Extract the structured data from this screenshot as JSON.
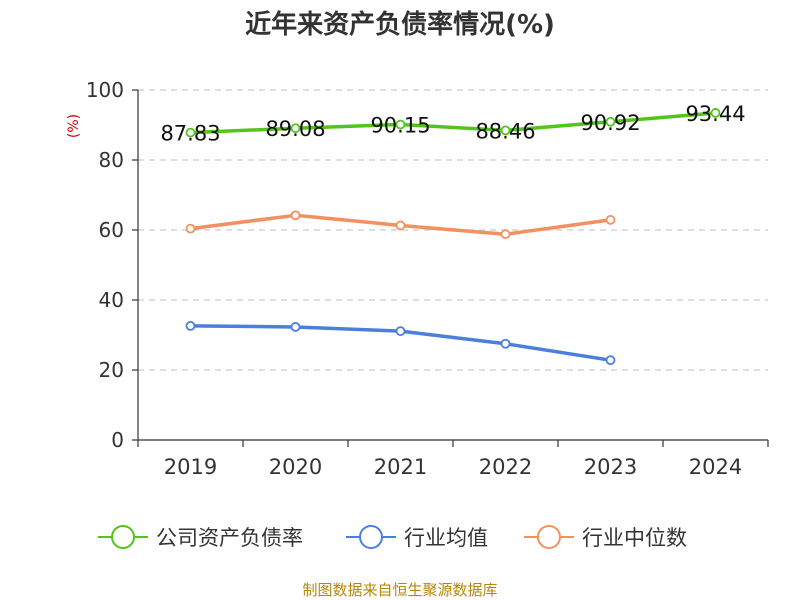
{
  "title": "近年来资产负债率情况(%)",
  "source": "制图数据来自恒生聚源数据库",
  "chart_data": {
    "type": "line",
    "title": "近年来资产负债率情况(%)",
    "ylabel": "(%)",
    "xlabel": "",
    "categories": [
      "2019",
      "2020",
      "2021",
      "2022",
      "2023",
      "2024"
    ],
    "ylim": [
      0,
      100
    ],
    "yticks": [
      0,
      20,
      40,
      60,
      80,
      100
    ],
    "grid": true,
    "legend_position": "bottom",
    "series": [
      {
        "name": "公司资产负债率",
        "color": "#52c41a",
        "values": [
          87.83,
          89.08,
          90.15,
          88.46,
          90.92,
          93.44
        ],
        "labels": [
          "87.83",
          "89.08",
          "90.15",
          "88.46",
          "90.92",
          "93.44"
        ]
      },
      {
        "name": "行业均值",
        "color": "#4a7fdc",
        "values": [
          32.6,
          32.3,
          31.1,
          27.5,
          22.8,
          null
        ]
      },
      {
        "name": "行业中位数",
        "color": "#f39060",
        "values": [
          60.4,
          64.2,
          61.3,
          58.8,
          62.9,
          null
        ]
      }
    ]
  }
}
